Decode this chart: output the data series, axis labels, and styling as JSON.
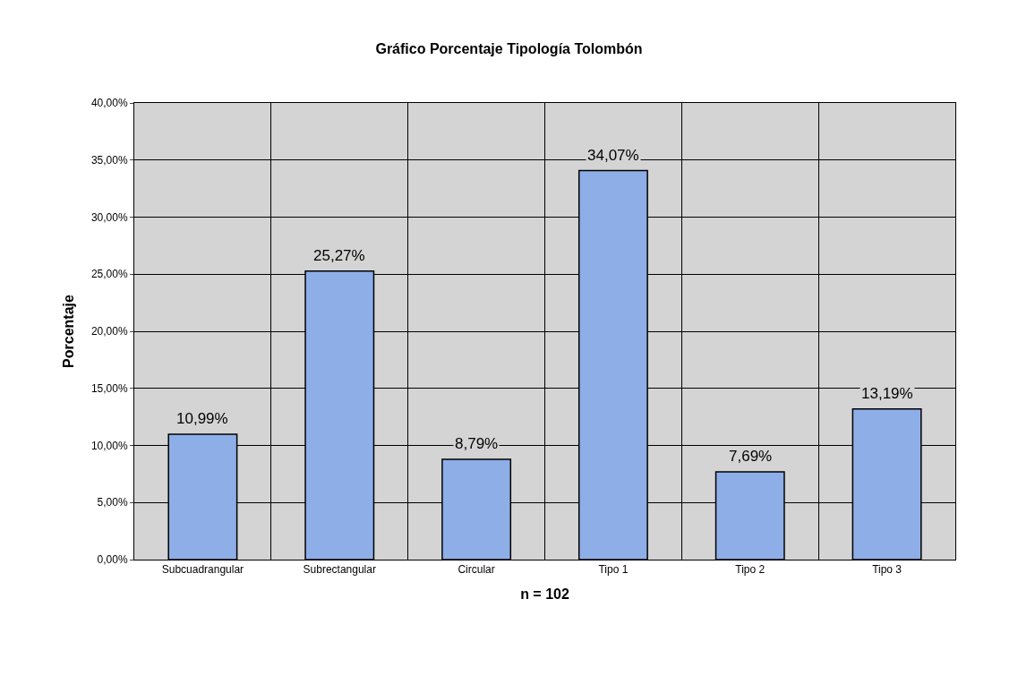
{
  "chart_data": {
    "type": "bar",
    "title": "Gráfico Porcentaje Tipología Tolombón",
    "xlabel": "n = 102",
    "ylabel": "Porcentaje",
    "categories": [
      "Subcuadrangular",
      "Subrectangular",
      "Circular",
      "Tipo 1",
      "Tipo 2",
      "Tipo 3"
    ],
    "values": [
      10.99,
      25.27,
      8.79,
      34.07,
      7.69,
      13.19
    ],
    "value_labels": [
      "10,99%",
      "25,27%",
      "8,79%",
      "34,07%",
      "7,69%",
      "13,19%"
    ],
    "color": "#8eaee8",
    "ylim": [
      0,
      40
    ],
    "yticks": [
      {
        "value": 0,
        "label": "0,00%"
      },
      {
        "value": 5,
        "label": "5,00%"
      },
      {
        "value": 10,
        "label": "10,00%"
      },
      {
        "value": 15,
        "label": "15,00%"
      },
      {
        "value": 20,
        "label": "20,00%"
      },
      {
        "value": 25,
        "label": "25,00%"
      },
      {
        "value": 30,
        "label": "30,00%"
      },
      {
        "value": 35,
        "label": "35,00%"
      },
      {
        "value": 40,
        "label": "40,00%"
      }
    ],
    "grid": true,
    "legend": false
  }
}
